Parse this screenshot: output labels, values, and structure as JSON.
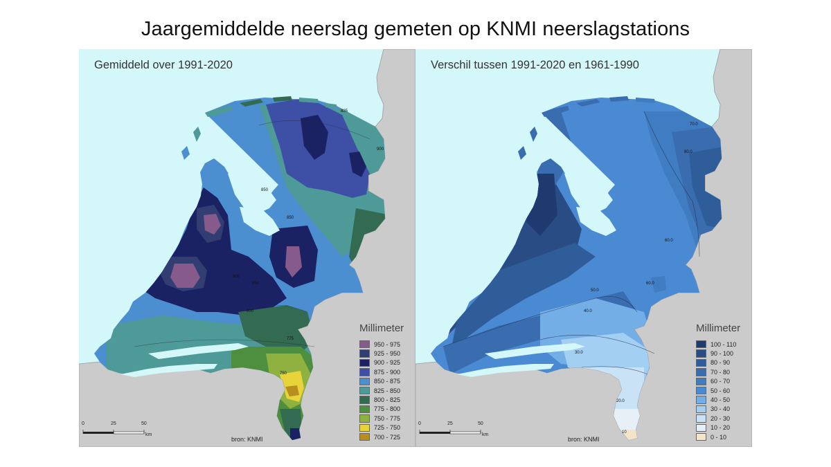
{
  "title": "Jaargemiddelde neerslag gemeten op KNMI neerslagstations",
  "panels": [
    {
      "title": "Gemiddeld over 1991-2020",
      "legend_title": "Millimeter",
      "legend": [
        {
          "label": "950 - 975",
          "color": "#875a8c"
        },
        {
          "label": "925 - 950",
          "color": "#323e72"
        },
        {
          "label": "900 - 925",
          "color": "#1b2264"
        },
        {
          "label": "875 - 900",
          "color": "#3e4fa6"
        },
        {
          "label": "850 - 875",
          "color": "#4c8fd1"
        },
        {
          "label": "825 - 850",
          "color": "#4e9a99"
        },
        {
          "label": "800 - 825",
          "color": "#326a52"
        },
        {
          "label": "775 - 800",
          "color": "#4e8f3f"
        },
        {
          "label": "750 - 775",
          "color": "#8fb13f"
        },
        {
          "label": "725 - 750",
          "color": "#e6d43a"
        },
        {
          "label": "700 - 725",
          "color": "#b88e1e"
        }
      ],
      "source": "bron: KNMI",
      "scale": {
        "ticks": [
          "0",
          "25",
          "50"
        ],
        "unit": "km"
      }
    },
    {
      "title": "Verschil tussen 1991-2020 en 1961-1990",
      "legend_title": "Millimeter",
      "legend": [
        {
          "label": "100 - 110",
          "color": "#1f3a6e"
        },
        {
          "label": "90 - 100",
          "color": "#284c83"
        },
        {
          "label": "80 - 90",
          "color": "#2f5d99"
        },
        {
          "label": "70 - 80",
          "color": "#3a6daf"
        },
        {
          "label": "60 - 70",
          "color": "#3f7cc2"
        },
        {
          "label": "50 - 60",
          "color": "#4a8ad2"
        },
        {
          "label": "40 - 50",
          "color": "#74aee6"
        },
        {
          "label": "30 - 40",
          "color": "#a3cff2"
        },
        {
          "label": "20 - 30",
          "color": "#c9e2f5"
        },
        {
          "label": "10 - 20",
          "color": "#e6f0f6"
        },
        {
          "label": "0 - 10",
          "color": "#f3e6c8"
        }
      ],
      "source": "bron: KNMI",
      "scale": {
        "ticks": [
          "0",
          "25",
          "50"
        ],
        "unit": "km"
      }
    }
  ]
}
